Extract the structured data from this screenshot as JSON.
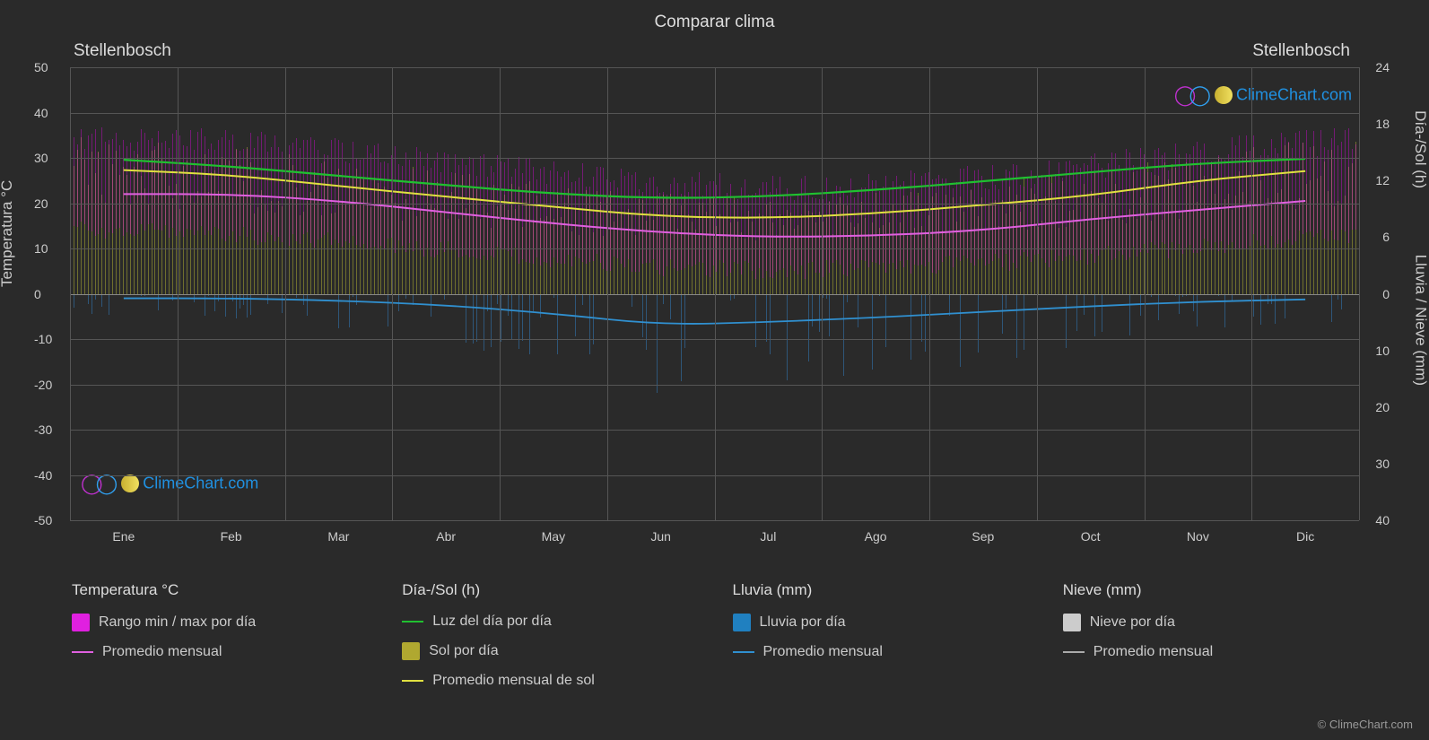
{
  "title": "Comparar clima",
  "location_left": "Stellenbosch",
  "location_right": "Stellenbosch",
  "axis_left_label": "Temperatura °C",
  "axis_right1_label": "Día-/Sol (h)",
  "axis_right2_label": "Lluvia / Nieve (mm)",
  "logo_text": "ClimeChart.com",
  "copyright": "© ClimeChart.com",
  "chart": {
    "background_color": "#2a2a2a",
    "grid_color": "#555555",
    "zero_line_color": "#888888",
    "months": [
      "Ene",
      "Feb",
      "Mar",
      "Abr",
      "May",
      "Jun",
      "Jul",
      "Ago",
      "Sep",
      "Oct",
      "Nov",
      "Dic"
    ],
    "temp_axis": {
      "min": -50,
      "max": 50,
      "step": 10
    },
    "daysol_axis": {
      "min": 0,
      "max": 24,
      "step": 6
    },
    "rain_axis": {
      "min": 0,
      "max": 40,
      "step": 10
    },
    "colors": {
      "temp_range": "#e020e0",
      "temp_avg": "#e060e0",
      "daylight_line": "#20c030",
      "sun_fill": "#b0a830",
      "sun_avg": "#e0e040",
      "rain_fill": "#2080c0",
      "rain_avg": "#3090d0",
      "snow_fill": "#cccccc",
      "snow_avg": "#aaaaaa"
    },
    "series": {
      "daylight": [
        14.2,
        13.5,
        12.5,
        11.5,
        10.6,
        10.1,
        10.3,
        11.0,
        11.9,
        12.9,
        13.8,
        14.3
      ],
      "sun_avg": [
        13.1,
        12.6,
        11.4,
        10.3,
        9.2,
        8.2,
        8.0,
        8.5,
        9.4,
        10.4,
        12.0,
        13.0
      ],
      "temp_avg": [
        22.0,
        22.0,
        20.5,
        18.0,
        15.5,
        13.5,
        12.5,
        12.8,
        14.0,
        16.5,
        18.5,
        20.5
      ],
      "temp_min": [
        14,
        14,
        12,
        10,
        8,
        6,
        5,
        6,
        7,
        9,
        11,
        13
      ],
      "temp_max": [
        34,
        34,
        32,
        30,
        27,
        25,
        23,
        24,
        26,
        29,
        32,
        34
      ],
      "rain_avg": [
        0.8,
        0.8,
        1.2,
        2.0,
        3.5,
        5.5,
        5.0,
        4.2,
        3.2,
        2.2,
        1.4,
        1.0
      ],
      "rain_max": [
        4,
        4,
        6,
        8,
        12,
        18,
        17,
        15,
        12,
        9,
        6,
        5
      ]
    }
  },
  "legend": {
    "col1": {
      "header": "Temperatura °C",
      "items": [
        {
          "label": "Rango min / max por día",
          "type": "swatch",
          "color": "#e020e0"
        },
        {
          "label": "Promedio mensual",
          "type": "line",
          "color": "#e060e0"
        }
      ]
    },
    "col2": {
      "header": "Día-/Sol (h)",
      "items": [
        {
          "label": "Luz del día por día",
          "type": "line",
          "color": "#20c030"
        },
        {
          "label": "Sol por día",
          "type": "swatch",
          "color": "#b0a830"
        },
        {
          "label": "Promedio mensual de sol",
          "type": "line",
          "color": "#e0e040"
        }
      ]
    },
    "col3": {
      "header": "Lluvia (mm)",
      "items": [
        {
          "label": "Lluvia por día",
          "type": "swatch",
          "color": "#2080c0"
        },
        {
          "label": "Promedio mensual",
          "type": "line",
          "color": "#3090d0"
        }
      ]
    },
    "col4": {
      "header": "Nieve (mm)",
      "items": [
        {
          "label": "Nieve por día",
          "type": "swatch",
          "color": "#cccccc"
        },
        {
          "label": "Promedio mensual",
          "type": "line",
          "color": "#aaaaaa"
        }
      ]
    }
  }
}
